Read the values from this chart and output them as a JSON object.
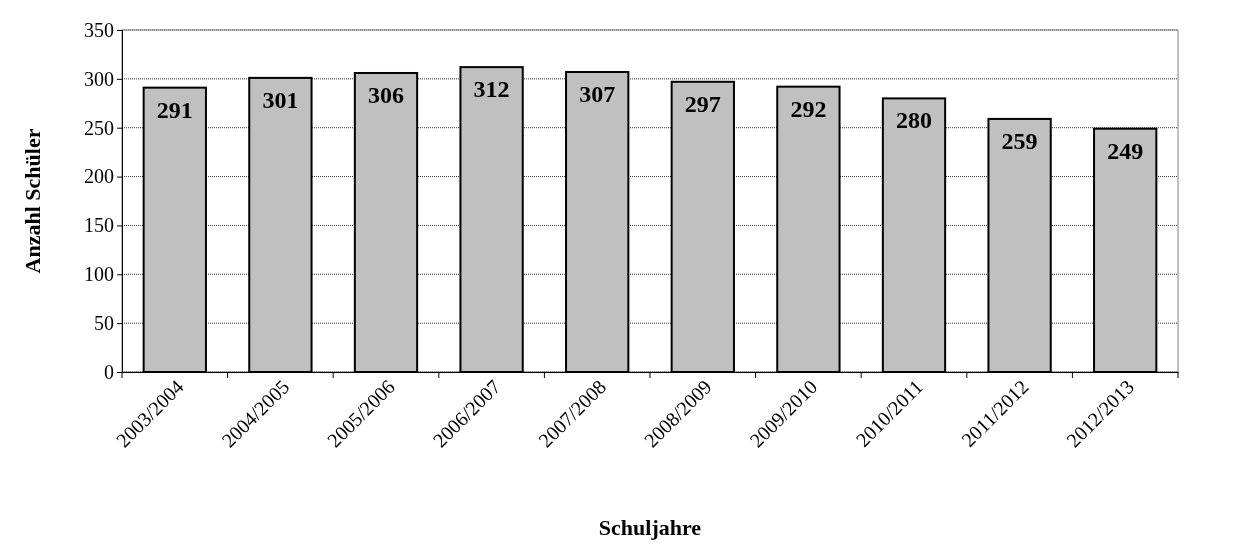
{
  "chart_data": {
    "type": "bar",
    "xlabel": "Schuljahre",
    "ylabel": "Anzahl Schüler",
    "categories": [
      "2003/2004",
      "2004/2005",
      "2005/2006",
      "2006/2007",
      "2007/2008",
      "2008/2009",
      "2009/2010",
      "2010/2011",
      "2011/2012",
      "2012/2013"
    ],
    "values": [
      291,
      301,
      306,
      312,
      307,
      297,
      292,
      280,
      259,
      249
    ],
    "color": "#c0c0c0",
    "ylim": [
      0,
      350
    ],
    "yticks": [
      0,
      50,
      100,
      150,
      200,
      250,
      300,
      350
    ],
    "grid": "y",
    "data_labels": true
  }
}
